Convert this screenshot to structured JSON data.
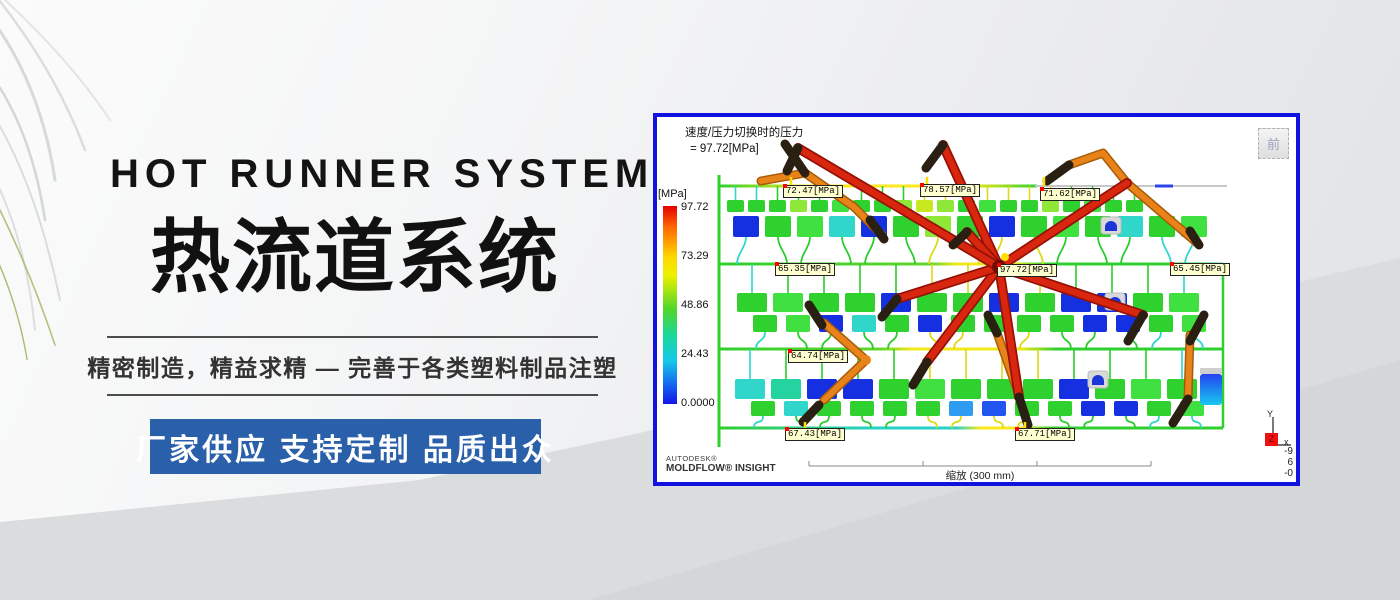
{
  "hero": {
    "title_en": "HOT RUNNER SYSTEM",
    "title_zh": "热流道系统",
    "tagline": "精密制造，精益求精 — 完善于各类塑料制品注塑",
    "cta": "厂家供应 支持定制 品质出众",
    "cta_color": "#2a5fa9"
  },
  "panel": {
    "result_title_line1": "速度/压力切换时的压力",
    "result_title_line2": "= 97.72[MPa]",
    "front_button": "前",
    "legend": {
      "unit": "[MPa]",
      "ticks": [
        "97.72",
        "73.29",
        "48.86",
        "24.43",
        "0.0000"
      ],
      "top_color": "#e60000",
      "bottom_color": "#1414e8"
    },
    "probe_labels": [
      "72.47[MPa]",
      "78.57[MPa]",
      "71.62[MPa]",
      "65.35[MPa]",
      "97.72[MPa]",
      "65.45[MPa]",
      "64.74[MPa]",
      "67.43[MPa]",
      "67.71[MPa]"
    ],
    "brand_line1": "AUTODESK®",
    "brand_line2": "MOLDFLOW® INSIGHT",
    "scale_label": "缩放 (300 mm)",
    "axis": {
      "x_label": "x",
      "y_label": "Y",
      "z_label": "Z",
      "readout": [
        "-9",
        "6",
        "-0"
      ]
    },
    "border_color": "#1212e0"
  }
}
